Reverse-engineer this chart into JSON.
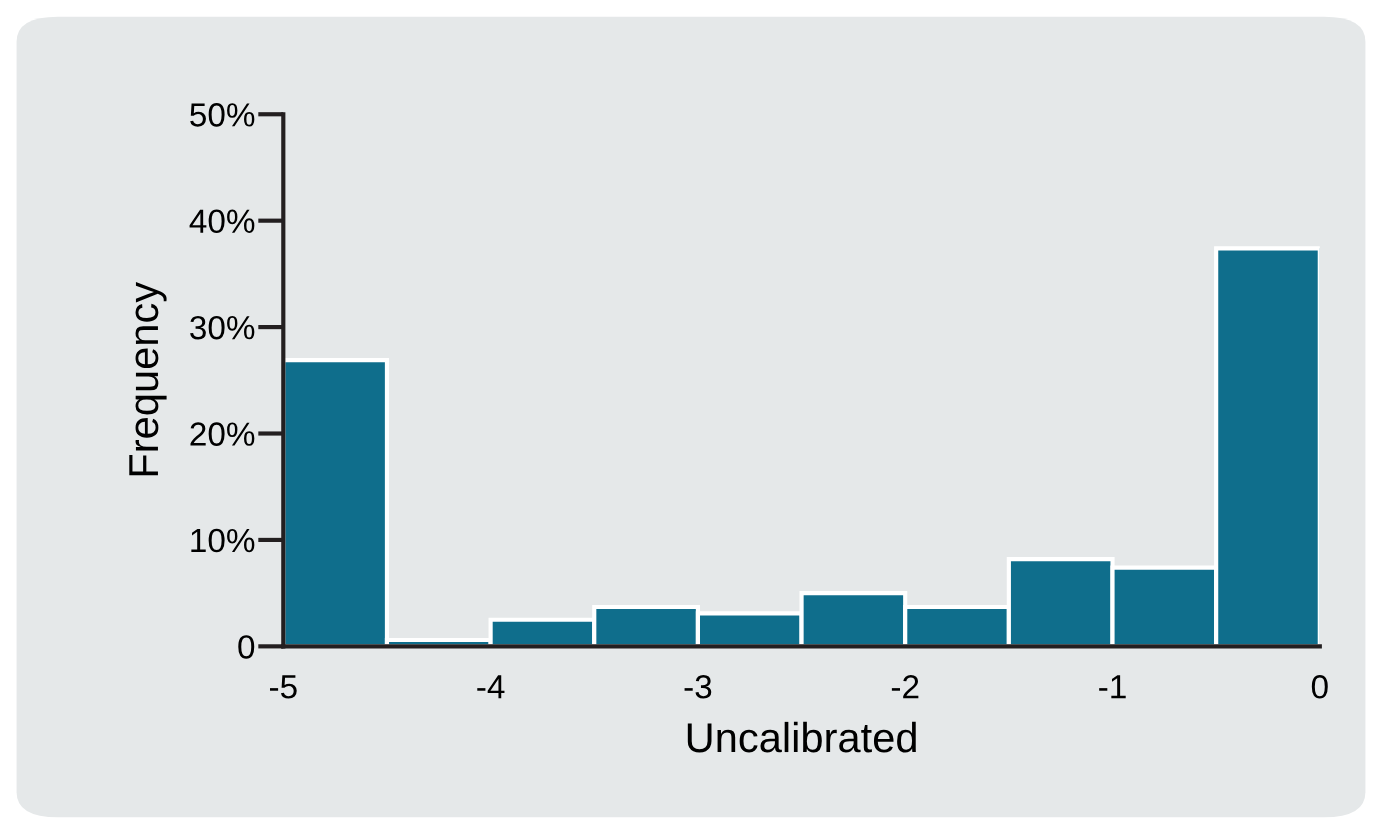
{
  "chart_data": {
    "type": "histogram",
    "xlabel": "Uncalibrated",
    "ylabel": "Frequency",
    "bins": [
      -5,
      -4.5,
      -4,
      -3.5,
      -3,
      -2.5,
      -2,
      -1.5,
      -1,
      -0.5,
      0
    ],
    "values": [
      26.9,
      0.6,
      2.5,
      3.7,
      3.1,
      5.0,
      3.7,
      8.2,
      7.4,
      37.4
    ],
    "color": "#0f6e8c",
    "xlim": [
      -5,
      0
    ],
    "xticks": [
      -5,
      -4,
      -3,
      -2,
      -1,
      0
    ],
    "ylim": [
      0,
      50
    ],
    "yticks": [
      0,
      {
        "value": 10,
        "label": "10%"
      },
      {
        "value": 20,
        "label": "20%"
      },
      {
        "value": 30,
        "label": "30%"
      },
      {
        "value": 40,
        "label": "40%"
      },
      {
        "value": 50,
        "label": "50%"
      }
    ],
    "grid": false
  }
}
